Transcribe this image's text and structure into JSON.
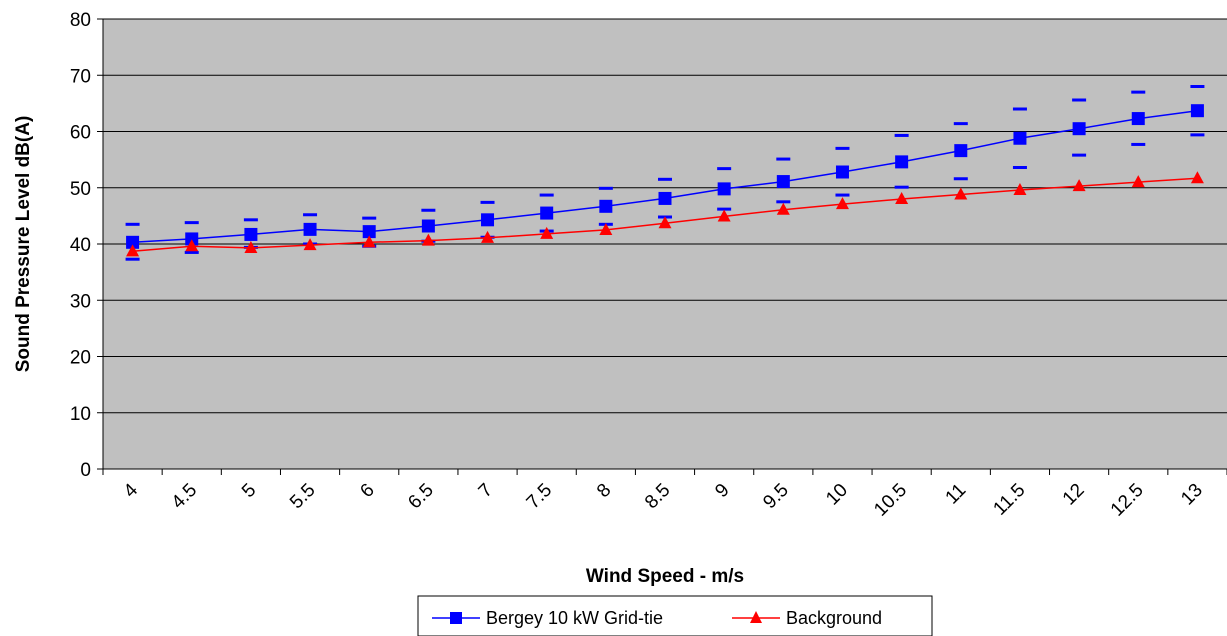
{
  "chart_data": {
    "type": "line",
    "title": "",
    "xlabel": "Wind Speed - m/s",
    "ylabel": "Sound Pressure Level dB(A)",
    "ylim": [
      0,
      80
    ],
    "yticks": [
      0,
      10,
      20,
      30,
      40,
      50,
      60,
      70,
      80
    ],
    "grid": true,
    "legend": "bottom-center",
    "x": [
      "4",
      "4.5",
      "5",
      "5.5",
      "6",
      "6.5",
      "7",
      "7.5",
      "8",
      "8.5",
      "9",
      "9.5",
      "10",
      "10.5",
      "11",
      "11.5",
      "12",
      "12.5",
      "13"
    ],
    "series": [
      {
        "name": "Bergey 10 kW Grid-tie",
        "color": "#0000ff",
        "marker": "square",
        "values": [
          40.3,
          40.9,
          41.7,
          42.6,
          42.2,
          43.2,
          44.3,
          45.5,
          46.7,
          48.1,
          49.8,
          51.1,
          52.8,
          54.6,
          56.6,
          58.8,
          60.5,
          62.3,
          63.7
        ],
        "error_upper": [
          43.5,
          43.8,
          44.3,
          45.2,
          44.6,
          46.0,
          47.4,
          48.7,
          49.9,
          51.5,
          53.4,
          55.1,
          57.0,
          59.3,
          61.4,
          64.0,
          65.6,
          67.0,
          68.0
        ],
        "error_lower": [
          37.3,
          38.5,
          39.4,
          40.0,
          39.6,
          40.5,
          41.2,
          42.3,
          43.5,
          44.8,
          46.2,
          47.5,
          48.7,
          50.1,
          51.6,
          53.6,
          55.8,
          57.7,
          59.4
        ]
      },
      {
        "name": "Background",
        "color": "#ff0000",
        "marker": "triangle",
        "values": [
          38.7,
          39.6,
          39.3,
          39.8,
          40.3,
          40.6,
          41.1,
          41.8,
          42.5,
          43.7,
          44.9,
          46.1,
          47.1,
          48.0,
          48.8,
          49.6,
          50.3,
          51.0,
          51.7
        ]
      }
    ]
  }
}
